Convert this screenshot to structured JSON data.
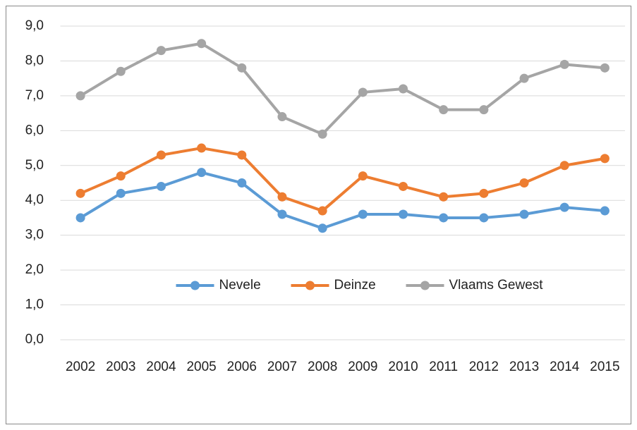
{
  "chart_data": {
    "type": "line",
    "categories": [
      "2002",
      "2003",
      "2004",
      "2005",
      "2006",
      "2007",
      "2008",
      "2009",
      "2010",
      "2011",
      "2012",
      "2013",
      "2014",
      "2015"
    ],
    "series": [
      {
        "name": "Nevele",
        "color": "#5b9bd5",
        "values": [
          3.5,
          4.2,
          4.4,
          4.8,
          4.5,
          3.6,
          3.2,
          3.6,
          3.6,
          3.5,
          3.5,
          3.6,
          3.8,
          3.7
        ]
      },
      {
        "name": "Deinze",
        "color": "#ed7d31",
        "values": [
          4.2,
          4.7,
          5.3,
          5.5,
          5.3,
          4.1,
          3.7,
          4.7,
          4.4,
          4.1,
          4.2,
          4.5,
          5.0,
          5.2
        ]
      },
      {
        "name": "Vlaams Gewest",
        "color": "#a5a5a5",
        "values": [
          7.0,
          7.7,
          8.3,
          8.5,
          7.8,
          6.4,
          5.9,
          7.1,
          7.2,
          6.6,
          6.6,
          7.5,
          7.9,
          7.8
        ]
      }
    ],
    "ylim": [
      0,
      9
    ],
    "yticks": [
      {
        "value": 0,
        "label": "0,0"
      },
      {
        "value": 1,
        "label": "1,0"
      },
      {
        "value": 2,
        "label": "2,0"
      },
      {
        "value": 3,
        "label": "3,0"
      },
      {
        "value": 4,
        "label": "4,0"
      },
      {
        "value": 5,
        "label": "5,0"
      },
      {
        "value": 6,
        "label": "6,0"
      },
      {
        "value": 7,
        "label": "7,0"
      },
      {
        "value": 8,
        "label": "8,0"
      },
      {
        "value": 9,
        "label": "9,0"
      }
    ],
    "grid": true,
    "legend": "bottom"
  }
}
